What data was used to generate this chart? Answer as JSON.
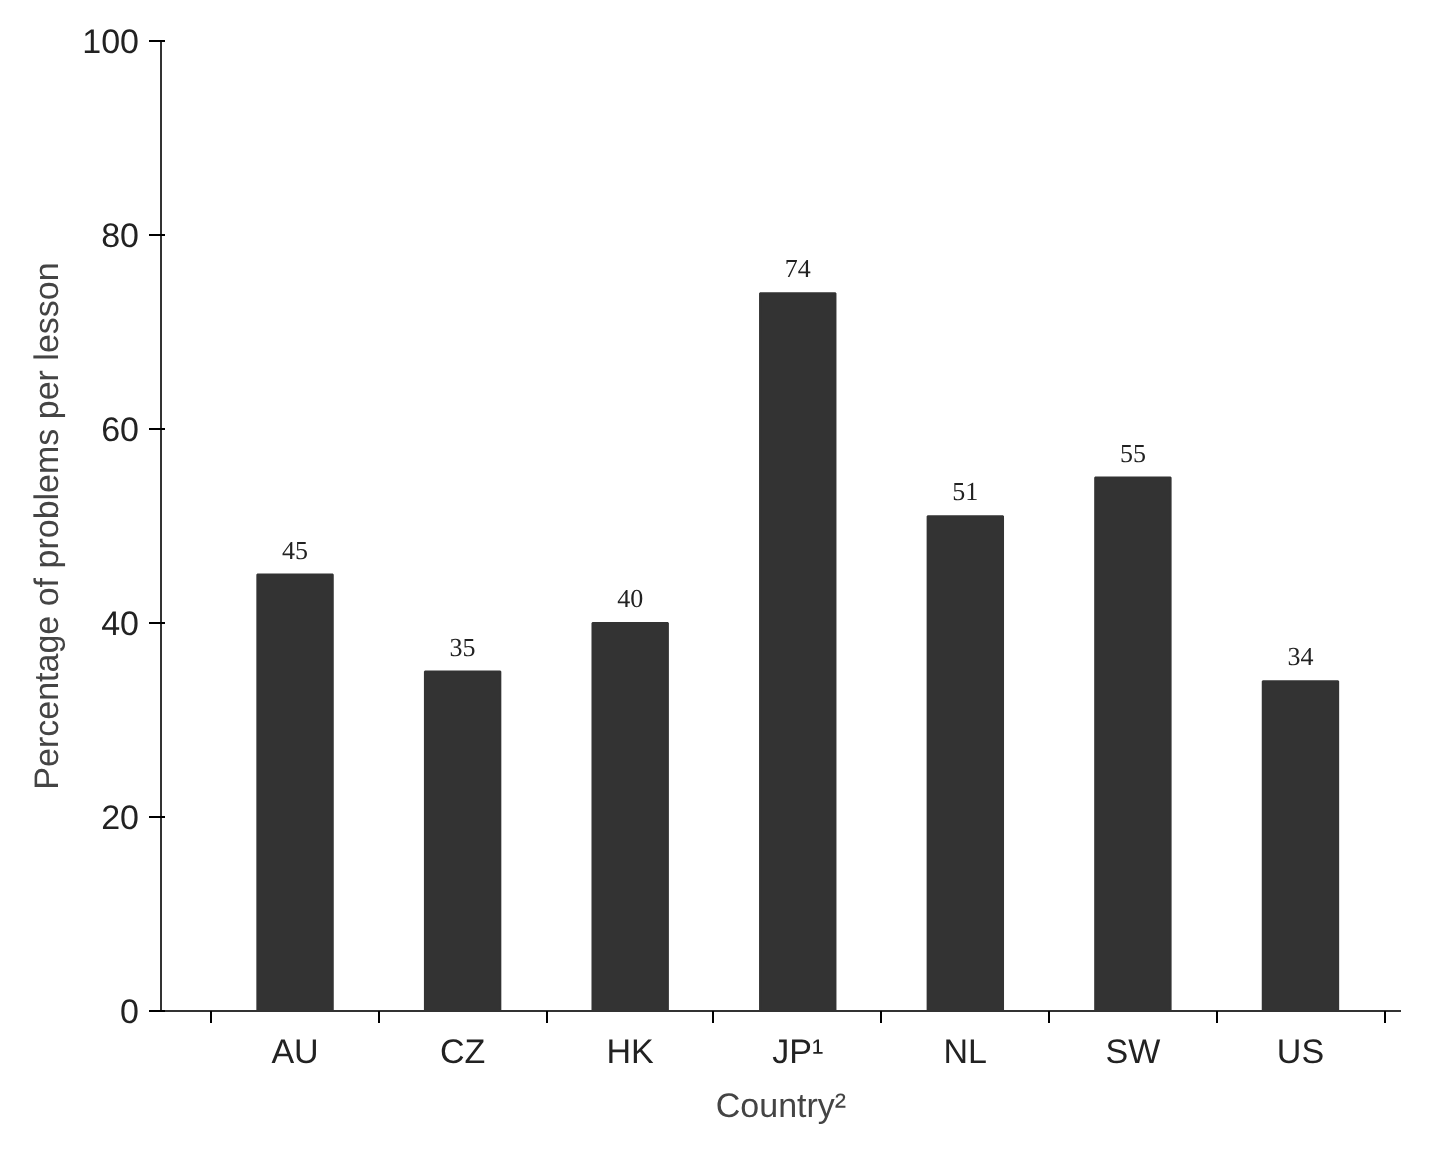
{
  "chart_data": {
    "type": "bar",
    "xlabel": "Country²",
    "ylabel": "Percentage of problems per lesson",
    "categories": [
      "AU",
      "CZ",
      "HK",
      "JP¹",
      "NL",
      "SW",
      "US"
    ],
    "values": [
      45,
      35,
      40,
      74,
      51,
      55,
      34
    ],
    "color": "#333333",
    "ylim": [
      0,
      100
    ],
    "yticks": [
      0,
      20,
      40,
      60,
      80,
      100
    ],
    "grid": false,
    "data_labels": true
  }
}
